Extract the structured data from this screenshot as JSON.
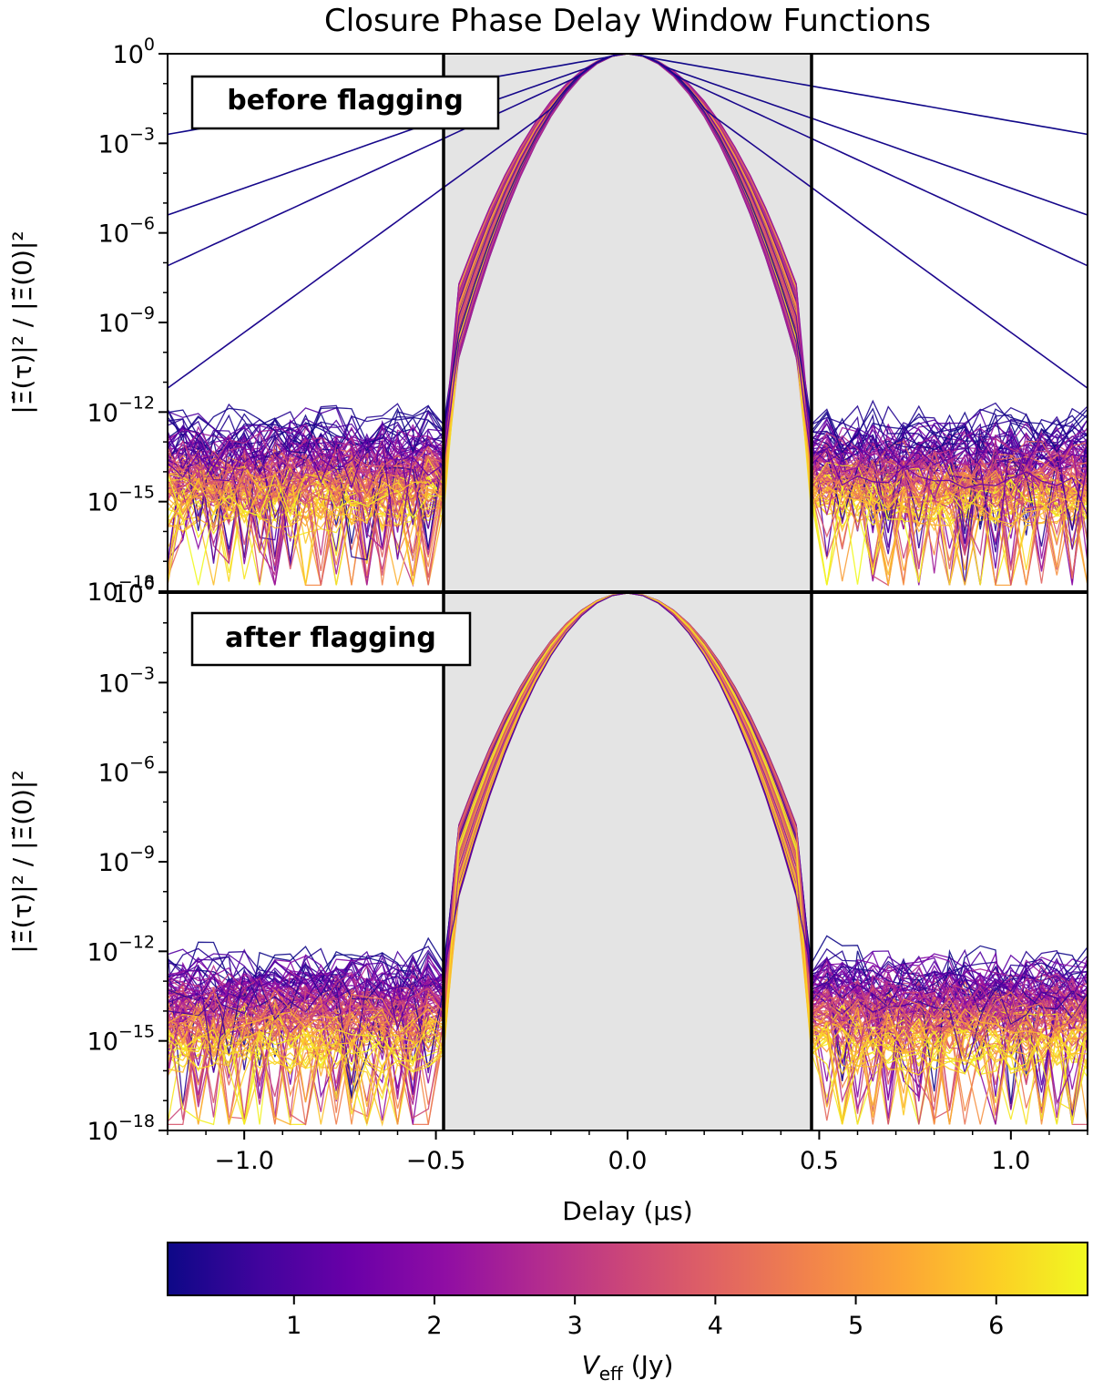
{
  "chart_data": [
    {
      "type": "line",
      "title": "Closure Phase Delay Window Functions",
      "panel_label": "before flagging",
      "ylabel": "|Ξ̃(τ)|² / |Ξ̃(0)|²",
      "yscale": "log",
      "ylim_exponents": [
        -18,
        0
      ],
      "yticks": [
        {
          "base": "10",
          "exp": "0",
          "value": 1
        },
        {
          "base": "10",
          "exp": "−3",
          "value": 0.001
        },
        {
          "base": "10",
          "exp": "−6",
          "value": 1e-06
        },
        {
          "base": "10",
          "exp": "−9",
          "value": 1e-09
        },
        {
          "base": "10",
          "exp": "−12",
          "value": 1e-12
        },
        {
          "base": "10",
          "exp": "−15",
          "value": 1e-15
        },
        {
          "base": "10",
          "exp": "−18",
          "value": 1e-18
        }
      ],
      "xlim": [
        -1.2,
        1.2
      ],
      "shaded_region": [
        -0.48,
        0.48
      ],
      "shade_color": "#e4e4e4",
      "vertical_lines": [
        -0.48,
        0.48
      ],
      "main_lobe": {
        "peak_log10": 0,
        "log10_at_0_5us": -11.5
      },
      "noise_floor_log10": [
        -16,
        -12
      ],
      "outlier_series": [
        {
          "veff": 0.15,
          "log10_at_edges": -2.7
        },
        {
          "veff": 0.2,
          "log10_at_edges": -5.4
        },
        {
          "veff": 0.25,
          "log10_at_edges": -7.1
        },
        {
          "veff": 0.3,
          "log10_at_edges": -11.2
        }
      ]
    },
    {
      "type": "line",
      "panel_label": "after flagging",
      "xlabel": "Delay (μs)",
      "ylabel": "|Ξ̃(τ)|² / |Ξ̃(0)|²",
      "yscale": "log",
      "ylim_exponents": [
        -18,
        0
      ],
      "yticks": [
        {
          "base": "10",
          "exp": "0",
          "value": 1
        },
        {
          "base": "10",
          "exp": "−3",
          "value": 0.001
        },
        {
          "base": "10",
          "exp": "−6",
          "value": 1e-06
        },
        {
          "base": "10",
          "exp": "−9",
          "value": 1e-09
        },
        {
          "base": "10",
          "exp": "−12",
          "value": 1e-12
        },
        {
          "base": "10",
          "exp": "−15",
          "value": 1e-15
        },
        {
          "base": "10",
          "exp": "−18",
          "value": 1e-18
        }
      ],
      "xlim": [
        -1.2,
        1.2
      ],
      "xticks": [
        {
          "label": "−1.0",
          "value": -1.0
        },
        {
          "label": "−0.5",
          "value": -0.5
        },
        {
          "label": "0.0",
          "value": 0.0
        },
        {
          "label": "0.5",
          "value": 0.5
        },
        {
          "label": "1.0",
          "value": 1.0
        }
      ],
      "shaded_region": [
        -0.48,
        0.48
      ],
      "shade_color": "#e4e4e4",
      "vertical_lines": [
        -0.48,
        0.48
      ],
      "main_lobe": {
        "peak_log10": 0,
        "log10_at_0_5us": -11.5
      },
      "noise_floor_log10": [
        -16,
        -12
      ],
      "outlier_series": []
    }
  ],
  "colorbar": {
    "label_var": "V",
    "label_sub": "eff",
    "label_unit": " (Jy)",
    "range": [
      0.1,
      6.65
    ],
    "ticks": [
      {
        "label": "1",
        "value": 1
      },
      {
        "label": "2",
        "value": 2
      },
      {
        "label": "3",
        "value": 3
      },
      {
        "label": "4",
        "value": 4
      },
      {
        "label": "5",
        "value": 5
      },
      {
        "label": "6",
        "value": 6
      }
    ],
    "colormap": "plasma",
    "stops": [
      "#0d0887",
      "#41049d",
      "#6a00a8",
      "#8f0da4",
      "#b12a90",
      "#cc4778",
      "#e16462",
      "#f2844b",
      "#fca636",
      "#fcce25",
      "#f0f921"
    ]
  }
}
